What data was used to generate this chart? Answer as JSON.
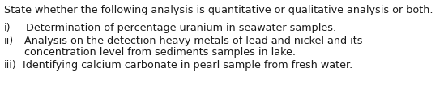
{
  "background_color": "#ffffff",
  "title_line": "State whether the following analysis is quantitative or qualitative analysis or both.",
  "items": [
    {
      "label": "i)",
      "indent": "    ",
      "text": "Determination of percentage uranium in seawater samples."
    },
    {
      "label": "ii)",
      "indent": "   ",
      "text_line1": "Analysis on the detection heavy metals of lead and nickel and its",
      "text_line2": "concentration level from sediments samples in lake."
    },
    {
      "label": "iii)",
      "indent": "  ",
      "text": "Identifying calcium carbonate in pearl sample from fresh water."
    }
  ],
  "font_family": "DejaVu Sans",
  "title_fontsize": 9.2,
  "body_fontsize": 9.2,
  "text_color": "#1a1a1a"
}
